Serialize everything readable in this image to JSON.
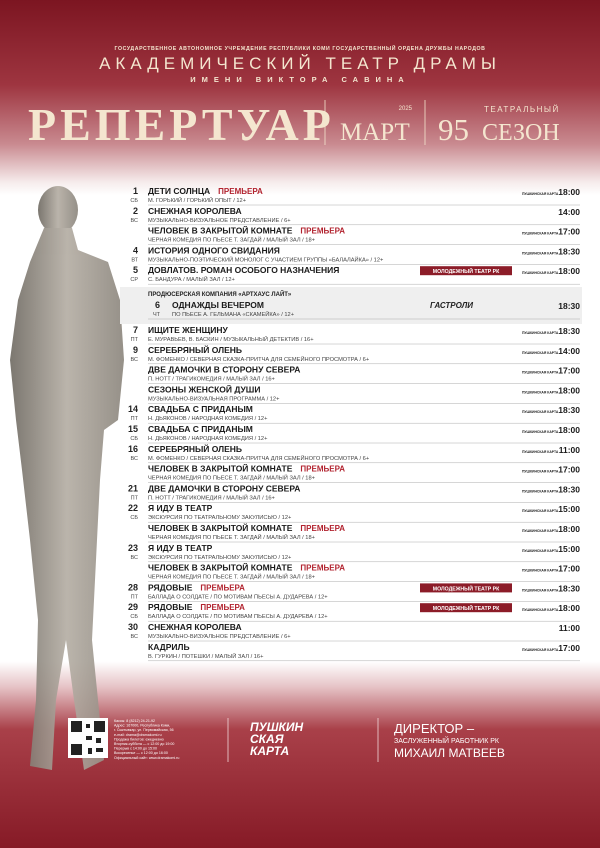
{
  "header": {
    "institution": "ГОСУДАРСТВЕННОЕ АВТОНОМНОЕ УЧРЕЖДЕНИЕ РЕСПУБЛИКИ КОМИ ГОСУДАРСТВЕННЫЙ ОРДЕНА ДРУЖБЫ НАРОДОВ",
    "theatre": "АКАДЕМИЧЕСКИЙ ТЕАТР ДРАМЫ",
    "named_after": "ИМЕНИ ВИКТОРА САВИНА"
  },
  "title": {
    "repertoire": "РЕПЕРТУАР",
    "month": "МАРТ",
    "year": "2025",
    "season_number": "95",
    "season_word1": "ТЕАТРАЛЬНЫЙ",
    "season_word2": "СЕЗОН"
  },
  "badges": {
    "pushkin": "ПУШКИНСКАЯ КАРТА",
    "premiere": "ПРЕМЬЕРА",
    "youth": "МОЛОДЕЖНЫЙ ТЕАТР РК",
    "tour": "ГАСТРОЛИ"
  },
  "events": [
    {
      "day": "1",
      "weekday": "СБ",
      "title": "ДЕТИ СОЛНЦА",
      "premiere": true,
      "details": "М. ГОРЬКИЙ / ГОРЬКИЙ ОПЫТ / 12+",
      "pushkin": true,
      "time": "18:00"
    },
    {
      "day": "2",
      "weekday": "ВС",
      "title": "СНЕЖНАЯ КОРОЛЕВА",
      "details": "МУЗЫКАЛЬНО-ВИЗУАЛЬНОЕ ПРЕДСТАВЛЕНИЕ / 6+",
      "time": "14:00"
    },
    {
      "title": "ЧЕЛОВЕК В ЗАКРЫТОЙ КОМНАТЕ",
      "premiere": true,
      "details": "ЧЕРНАЯ КОМЕДИЯ ПО ПЬЕСЕ Т. ЗАГДАЙ / МАЛЫЙ ЗАЛ / 18+",
      "pushkin": true,
      "time": "17:00"
    },
    {
      "day": "4",
      "weekday": "ВТ",
      "title": "ИСТОРИЯ ОДНОГО СВИДАНИЯ",
      "details": "МУЗЫКАЛЬНО-ПОЭТИЧЕСКИЙ МОНОЛОГ С УЧАСТИЕМ ГРУППЫ «БАЛАЛАЙКА» / 12+",
      "pushkin": true,
      "time": "18:30"
    },
    {
      "day": "5",
      "weekday": "СР",
      "title": "ДОВЛАТОВ. РОМАН ОСОБОГО НАЗНАЧЕНИЯ",
      "youth": true,
      "details": "С. БАНДУРА / МАЛЫЙ ЗАЛ / 12+",
      "pushkin": true,
      "time": "18:00"
    },
    {
      "company": "ПРОДЮСЕРСКАЯ КОМПАНИЯ «АРТХАУС ЛАЙТ»",
      "day": "6",
      "weekday": "ЧТ",
      "title": "ОДНАЖДЫ ВЕЧЕРОМ",
      "tour": true,
      "details": "ПО ПЬЕСЕ А. ГЕЛЬМАНА «СКАМЕЙКА» / 12+",
      "time": "18:30"
    },
    {
      "day": "7",
      "weekday": "ПТ",
      "title": "ИЩИТЕ ЖЕНЩИНУ",
      "details": "Е. МУРАВЬЕВ, В. БАСКИН / МУЗЫКАЛЬНЫЙ ДЕТЕКТИВ / 16+",
      "pushkin": true,
      "time": "18:30"
    },
    {
      "day": "9",
      "weekday": "ВС",
      "title": "СЕРЕБРЯНЫЙ ОЛЕНЬ",
      "details": "М. ФОМЕНКО / СЕВЕРНАЯ СКАЗКА-ПРИТЧА ДЛЯ СЕМЕЙНОГО ПРОСМОТРА / 6+",
      "pushkin": true,
      "time": "14:00"
    },
    {
      "title": "ДВЕ ДАМОЧКИ В СТОРОНУ СЕВЕРА",
      "details": "П. НОТТ / ТРАГИКОМЕДИЯ / МАЛЫЙ ЗАЛ / 16+",
      "pushkin": true,
      "time": "17:00"
    },
    {
      "title": "СЕЗОНЫ ЖЕНСКОЙ ДУШИ",
      "details": "МУЗЫКАЛЬНО-ВИЗУАЛЬНАЯ ПРОГРАММА / 12+",
      "pushkin": true,
      "time": "18:00"
    },
    {
      "day": "14",
      "weekday": "ПТ",
      "title": "СВАДЬБА С ПРИДАНЫМ",
      "details": "Н. ДЬЯКОНОВ / НАРОДНАЯ КОМЕДИЯ / 12+",
      "pushkin": true,
      "time": "18:30"
    },
    {
      "day": "15",
      "weekday": "СБ",
      "title": "СВАДЬБА С ПРИДАНЫМ",
      "details": "Н. ДЬЯКОНОВ / НАРОДНАЯ КОМЕДИЯ / 12+",
      "pushkin": true,
      "time": "18:00"
    },
    {
      "day": "16",
      "weekday": "ВС",
      "title": "СЕРЕБРЯНЫЙ ОЛЕНЬ",
      "details": "М. ФОМЕНКО / СЕВЕРНАЯ СКАЗКА-ПРИТЧА ДЛЯ СЕМЕЙНОГО ПРОСМОТРА / 6+",
      "pushkin": true,
      "time": "11:00"
    },
    {
      "title": "ЧЕЛОВЕК В ЗАКРЫТОЙ КОМНАТЕ",
      "premiere": true,
      "details": "ЧЕРНАЯ КОМЕДИЯ ПО ПЬЕСЕ Т. ЗАГДАЙ / МАЛЫЙ ЗАЛ / 18+",
      "pushkin": true,
      "time": "17:00"
    },
    {
      "day": "21",
      "weekday": "ПТ",
      "title": "ДВЕ ДАМОЧКИ В СТОРОНУ СЕВЕРА",
      "details": "П. НОТТ / ТРАГИКОМЕДИЯ / МАЛЫЙ ЗАЛ / 16+",
      "pushkin": true,
      "time": "18:30"
    },
    {
      "day": "22",
      "weekday": "СБ",
      "title": "Я ИДУ В ТЕАТР",
      "details": "ЭКСКУРСИЯ ПО ТЕАТРАЛЬНОМУ ЗАКУЛИСЬЮ / 12+",
      "pushkin": true,
      "time": "15:00"
    },
    {
      "title": "ЧЕЛОВЕК В ЗАКРЫТОЙ КОМНАТЕ",
      "premiere": true,
      "details": "ЧЕРНАЯ КОМЕДИЯ ПО ПЬЕСЕ Т. ЗАГДАЙ / МАЛЫЙ ЗАЛ / 18+",
      "pushkin": true,
      "time": "18:00"
    },
    {
      "day": "23",
      "weekday": "ВС",
      "title": "Я ИДУ В ТЕАТР",
      "details": "ЭКСКУРСИЯ ПО ТЕАТРАЛЬНОМУ ЗАКУЛИСЬЮ / 12+",
      "pushkin": true,
      "time": "15:00"
    },
    {
      "title": "ЧЕЛОВЕК В ЗАКРЫТОЙ КОМНАТЕ",
      "premiere": true,
      "details": "ЧЕРНАЯ КОМЕДИЯ ПО ПЬЕСЕ Т. ЗАГДАЙ / МАЛЫЙ ЗАЛ / 18+",
      "pushkin": true,
      "time": "17:00"
    },
    {
      "day": "28",
      "weekday": "ПТ",
      "title": "РЯДОВЫЕ",
      "premiere": true,
      "youth": true,
      "details": "БАЛЛАДА О СОЛДАТЕ / ПО МОТИВАМ ПЬЕСЫ А. ДУДАРЕВА / 12+",
      "pushkin": true,
      "time": "18:30"
    },
    {
      "day": "29",
      "weekday": "СБ",
      "title": "РЯДОВЫЕ",
      "premiere": true,
      "youth": true,
      "details": "БАЛЛАДА О СОЛДАТЕ / ПО МОТИВАМ ПЬЕСЫ А. ДУДАРЕВА / 12+",
      "pushkin": true,
      "time": "18:00"
    },
    {
      "day": "30",
      "weekday": "ВС",
      "title": "СНЕЖНАЯ КОРОЛЕВА",
      "details": "МУЗЫКАЛЬНО-ВИЗУАЛЬНОЕ ПРЕДСТАВЛЕНИЕ / 6+",
      "time": "11:00"
    },
    {
      "title": "КАДРИЛЬ",
      "details": "В. ГУРКИН / ПОТЕШКИ / МАЛЫЙ ЗАЛ / 16+",
      "pushkin": true,
      "time": "17:00"
    }
  ],
  "footer": {
    "contacts": [
      "Кассы: 8 (8212) 24-21-92",
      "Адрес: 167000, Республика Коми,",
      "г. Сыктывкар, ул. Первомайская, 56",
      "e-mail: drama@dramakomi.ru",
      "Продажа билетов: ежедневно",
      "Вторник-суббота — с 12:00 до 19:00",
      "Перерыв с 14:00 до 15:00",
      "Воскресенье — с 12:00 до 16:00",
      "Официальный сайт: www.dramakomi.ru"
    ],
    "pushkin_logo": [
      "ПУШКИН",
      "СКАЯ",
      "КАРТА"
    ],
    "director": {
      "role": "ДИРЕКТОР –",
      "title": "ЗАСЛУЖЕННЫЙ РАБОТНИК РК",
      "name": "МИХАИЛ МАТВЕЕВ"
    }
  }
}
